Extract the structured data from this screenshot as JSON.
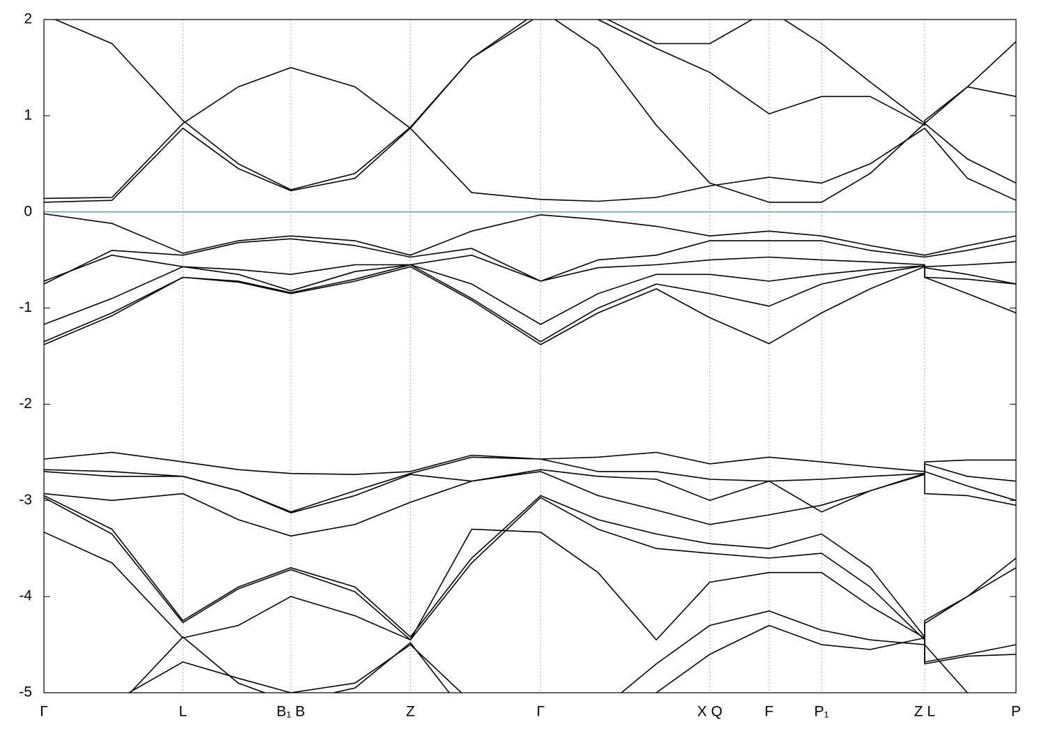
{
  "chart_data": {
    "type": "line",
    "x": [
      0,
      0.07,
      0.143,
      0.2,
      0.254,
      0.32,
      0.377,
      0.44,
      0.511,
      0.57,
      0.63,
      0.685,
      0.746,
      0.8,
      0.85,
      0.906,
      0.906,
      0.95,
      1
    ],
    "xlim": [
      0,
      1
    ],
    "xticks": [
      {
        "value": 0,
        "label": "Γ"
      },
      {
        "value": 0.143,
        "label": "L"
      },
      {
        "value": 0.254,
        "label": "B₁ B"
      },
      {
        "value": 0.377,
        "label": "Z"
      },
      {
        "value": 0.511,
        "label": "Γ"
      },
      {
        "value": 0.685,
        "label": "X Q"
      },
      {
        "value": 0.746,
        "label": "F"
      },
      {
        "value": 0.8,
        "label": "P₁"
      },
      {
        "value": 0.906,
        "label": "Z L"
      },
      {
        "value": 1,
        "label": "P"
      }
    ],
    "ylim": [
      -5,
      2
    ],
    "yticks": [
      2,
      1,
      0,
      -1,
      -2,
      -3,
      -4,
      -5
    ],
    "grid": true,
    "reference_line": {
      "value": 0,
      "color": "#4bacc6"
    },
    "series": [
      {
        "color": "#000000",
        "values": [
          0.1,
          0.12,
          0.87,
          0.45,
          0.22,
          0.35,
          0.87,
          0.2,
          0.13,
          0.11,
          0.15,
          0.27,
          0.36,
          0.3,
          0.5,
          0.87,
          0.87,
          0.35,
          0.12
        ]
      },
      {
        "color": "#000000",
        "values": [
          0.14,
          0.15,
          0.92,
          1.3,
          1.5,
          1.3,
          0.87,
          1.6,
          2.1,
          1.7,
          0.9,
          0.3,
          0.1,
          0.1,
          0.4,
          0.92,
          0.92,
          0.55,
          0.3
        ]
      },
      {
        "color": "#000000",
        "values": [
          2.05,
          1.75,
          0.95,
          0.5,
          0.23,
          0.4,
          0.88,
          1.6,
          2.05,
          2.0,
          1.7,
          1.45,
          1.02,
          1.2,
          1.2,
          0.9,
          0.95,
          1.3,
          1.2
        ]
      },
      {
        "color": "#000000",
        "values": [
          2.1,
          2.1,
          2.1,
          2.1,
          2.1,
          2.1,
          2.1,
          2.1,
          2.1,
          2.05,
          1.75,
          1.75,
          2.1,
          1.75,
          1.35,
          0.92,
          0.92,
          1.3,
          1.77
        ]
      },
      {
        "color": "#000000",
        "values": [
          -0.02,
          -0.12,
          -0.43,
          -0.3,
          -0.25,
          -0.3,
          -0.45,
          -0.2,
          -0.03,
          -0.08,
          -0.15,
          -0.25,
          -0.2,
          -0.25,
          -0.35,
          -0.45,
          -0.45,
          -0.35,
          -0.25
        ]
      },
      {
        "color": "#000000",
        "values": [
          -0.75,
          -0.4,
          -0.45,
          -0.32,
          -0.28,
          -0.35,
          -0.47,
          -0.38,
          -0.72,
          -0.5,
          -0.45,
          -0.3,
          -0.3,
          -0.3,
          -0.4,
          -0.47,
          -0.47,
          -0.4,
          -0.3
        ]
      },
      {
        "color": "#000000",
        "values": [
          -0.72,
          -0.45,
          -0.57,
          -0.6,
          -0.65,
          -0.55,
          -0.55,
          -0.45,
          -0.72,
          -0.58,
          -0.55,
          -0.5,
          -0.47,
          -0.5,
          -0.52,
          -0.55,
          -0.57,
          -0.55,
          -0.52
        ]
      },
      {
        "color": "#000000",
        "values": [
          -1.17,
          -0.9,
          -0.57,
          -0.65,
          -0.82,
          -0.62,
          -0.55,
          -0.75,
          -1.17,
          -0.85,
          -0.65,
          -0.65,
          -0.72,
          -0.65,
          -0.6,
          -0.56,
          -0.58,
          -0.65,
          -0.75
        ]
      },
      {
        "color": "#000000",
        "values": [
          -1.35,
          -1.05,
          -0.68,
          -0.72,
          -0.84,
          -0.7,
          -0.55,
          -0.9,
          -1.35,
          -1.0,
          -0.75,
          -0.85,
          -0.98,
          -0.75,
          -0.65,
          -0.56,
          -0.68,
          -0.7,
          -0.75
        ]
      },
      {
        "color": "#000000",
        "values": [
          -1.38,
          -1.08,
          -0.68,
          -0.73,
          -0.85,
          -0.72,
          -0.57,
          -0.92,
          -1.38,
          -1.05,
          -0.8,
          -1.1,
          -1.37,
          -1.05,
          -0.8,
          -0.57,
          -0.68,
          -0.85,
          -1.05
        ]
      },
      {
        "color": "#000000",
        "values": [
          -2.57,
          -2.5,
          -2.6,
          -2.68,
          -2.72,
          -2.73,
          -2.7,
          -2.53,
          -2.57,
          -2.55,
          -2.5,
          -2.62,
          -2.55,
          -2.6,
          -2.65,
          -2.7,
          -2.6,
          -2.58,
          -2.58
        ]
      },
      {
        "color": "#000000",
        "values": [
          -2.68,
          -2.7,
          -2.75,
          -2.9,
          -3.12,
          -2.9,
          -2.72,
          -2.55,
          -2.57,
          -2.7,
          -2.7,
          -2.78,
          -2.8,
          -2.78,
          -2.75,
          -2.72,
          -2.62,
          -2.75,
          -2.8
        ]
      },
      {
        "color": "#000000",
        "values": [
          -2.7,
          -2.75,
          -2.75,
          -2.9,
          -3.13,
          -2.95,
          -2.73,
          -2.8,
          -2.68,
          -2.75,
          -2.78,
          -3.0,
          -2.8,
          -3.12,
          -2.9,
          -2.72,
          -2.7,
          -2.85,
          -3.0
        ]
      },
      {
        "color": "#000000",
        "values": [
          -2.93,
          -3.0,
          -2.93,
          -3.2,
          -3.37,
          -3.25,
          -3.02,
          -2.8,
          -2.7,
          -2.95,
          -3.1,
          -3.25,
          -3.15,
          -3.05,
          -2.9,
          -2.73,
          -2.93,
          -2.95,
          -3.05
        ]
      },
      {
        "color": "#000000",
        "values": [
          -2.95,
          -3.3,
          -4.25,
          -3.9,
          -3.7,
          -3.9,
          -4.42,
          -3.6,
          -2.95,
          -3.2,
          -3.35,
          -3.45,
          -3.5,
          -3.35,
          -3.7,
          -4.42,
          -4.28,
          -4.0,
          -3.6
        ]
      },
      {
        "color": "#000000",
        "values": [
          -2.97,
          -3.35,
          -4.27,
          -3.92,
          -3.72,
          -3.95,
          -4.45,
          -3.65,
          -2.97,
          -3.3,
          -3.5,
          -3.55,
          -3.6,
          -3.55,
          -3.9,
          -4.45,
          -4.25,
          -4.0,
          -3.7
        ]
      },
      {
        "color": "#000000",
        "values": [
          -3.33,
          -3.65,
          -4.43,
          -4.3,
          -4.0,
          -4.2,
          -4.45,
          -3.3,
          -3.33,
          -3.75,
          -4.45,
          -3.85,
          -3.75,
          -3.75,
          -4.1,
          -4.43,
          -4.68,
          -4.6,
          -4.5
        ]
      },
      {
        "color": "#000000",
        "values": [
          -5.5,
          -5.1,
          -4.68,
          -4.85,
          -5.0,
          -4.9,
          -4.5,
          -5.1,
          -5.6,
          -5.2,
          -4.7,
          -4.3,
          -4.15,
          -4.35,
          -4.45,
          -4.5,
          -4.7,
          -4.62,
          -4.6
        ]
      },
      {
        "color": "#000000",
        "values": [
          -5.6,
          -5.2,
          -4.42,
          -4.9,
          -5.1,
          -4.95,
          -4.48,
          -5.3,
          -5.8,
          -5.3,
          -5.0,
          -4.6,
          -4.3,
          -4.5,
          -4.55,
          -4.43,
          -4.5,
          -5.0,
          -5.1
        ]
      }
    ]
  }
}
